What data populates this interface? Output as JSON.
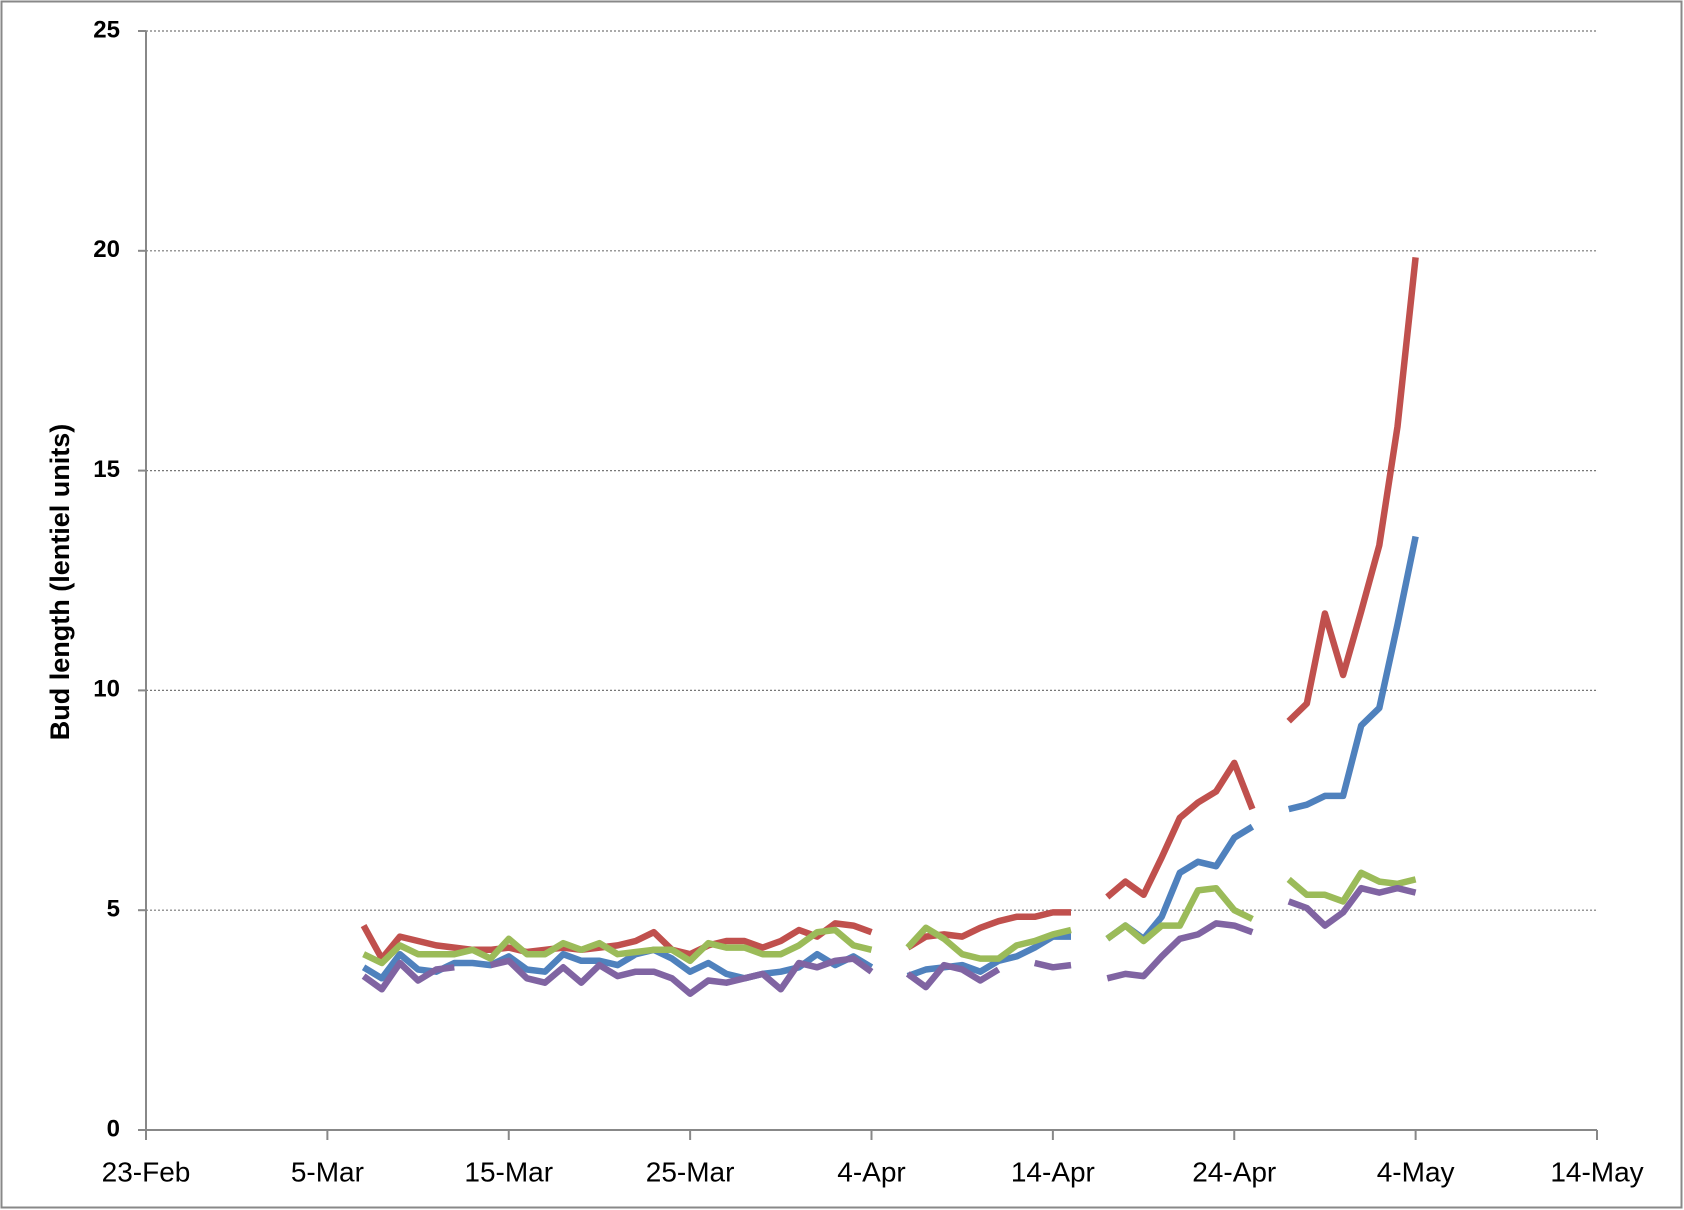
{
  "chart_data": {
    "type": "line",
    "y_label": "Bud length (lentiel units)",
    "x": [
      66,
      67,
      68,
      69,
      70,
      71,
      72,
      73,
      74,
      75,
      76,
      77,
      78,
      79,
      80,
      81,
      82,
      83,
      84,
      85,
      86,
      87,
      88,
      89,
      90,
      91,
      92,
      93,
      94,
      95,
      96,
      97,
      98,
      99,
      100,
      101,
      102,
      103,
      104,
      105,
      106,
      107,
      108,
      109,
      110,
      111,
      112,
      113,
      114,
      115,
      116,
      117,
      118,
      119,
      120,
      121,
      122,
      123,
      124
    ],
    "series": [
      {
        "color": "#c0504d",
        "values": [
          4.65,
          3.9,
          4.4,
          4.3,
          4.2,
          4.15,
          4.1,
          4.1,
          4.15,
          4.05,
          4.1,
          4.15,
          4.1,
          4.15,
          4.2,
          4.3,
          4.5,
          4.1,
          4.0,
          4.2,
          4.3,
          4.3,
          4.15,
          4.3,
          4.55,
          4.4,
          4.7,
          4.65,
          4.5,
          null,
          4.15,
          4.4,
          4.45,
          4.4,
          4.6,
          4.75,
          4.85,
          4.85,
          4.95,
          4.95,
          null,
          5.3,
          5.65,
          5.35,
          6.2,
          7.1,
          7.45,
          7.7,
          8.35,
          7.3,
          null,
          9.3,
          9.7,
          11.75,
          10.35,
          11.8,
          13.3,
          16.0,
          19.85
        ]
      },
      {
        "color": "#4f81bd",
        "values": [
          3.7,
          3.45,
          4.0,
          3.65,
          3.6,
          3.8,
          3.8,
          3.75,
          3.95,
          3.65,
          3.6,
          4.0,
          3.85,
          3.85,
          3.75,
          4.0,
          4.1,
          3.9,
          3.6,
          3.8,
          3.55,
          3.45,
          3.55,
          3.6,
          3.7,
          4.0,
          3.75,
          3.95,
          3.7,
          null,
          3.5,
          3.65,
          3.7,
          3.75,
          3.6,
          3.85,
          3.95,
          4.15,
          4.4,
          4.4,
          null,
          4.35,
          4.65,
          4.35,
          4.85,
          5.85,
          6.1,
          6.0,
          6.65,
          6.9,
          null,
          7.3,
          7.4,
          7.6,
          7.6,
          9.2,
          9.6,
          11.5,
          13.5
        ]
      },
      {
        "color": "#9bbb59",
        "values": [
          4.0,
          3.8,
          4.2,
          4.0,
          4.0,
          4.0,
          4.1,
          3.9,
          4.35,
          4.0,
          4.0,
          4.25,
          4.1,
          4.25,
          4.0,
          4.05,
          4.1,
          4.1,
          3.85,
          4.25,
          4.15,
          4.15,
          4.0,
          4.0,
          4.2,
          4.5,
          4.55,
          4.2,
          4.1,
          null,
          4.15,
          4.6,
          4.35,
          4.0,
          3.9,
          3.9,
          4.2,
          4.3,
          4.45,
          4.55,
          null,
          4.35,
          4.65,
          4.3,
          4.65,
          4.65,
          5.45,
          5.5,
          5.0,
          4.8,
          null,
          5.7,
          5.35,
          5.35,
          5.2,
          5.85,
          5.65,
          5.6,
          5.7
        ]
      },
      {
        "color": "#8064a2",
        "values": [
          3.5,
          3.2,
          3.8,
          3.4,
          3.65,
          3.7,
          null,
          3.75,
          3.85,
          3.45,
          3.35,
          3.7,
          3.35,
          3.75,
          3.5,
          3.6,
          3.6,
          3.45,
          3.1,
          3.4,
          3.35,
          3.45,
          3.55,
          3.2,
          3.8,
          3.7,
          3.85,
          3.9,
          3.6,
          null,
          3.55,
          3.25,
          3.75,
          3.65,
          3.4,
          3.65,
          null,
          3.8,
          3.7,
          3.75,
          null,
          3.45,
          3.55,
          3.5,
          3.95,
          4.35,
          4.45,
          4.7,
          4.65,
          4.5,
          null,
          5.2,
          5.05,
          4.65,
          4.95,
          5.5,
          5.4,
          5.5,
          5.4
        ]
      }
    ],
    "xlim": [
      54,
      134
    ],
    "xticks": [
      {
        "value": 54,
        "label": "23-Feb"
      },
      {
        "value": 64,
        "label": "5-Mar"
      },
      {
        "value": 74,
        "label": "15-Mar"
      },
      {
        "value": 84,
        "label": "25-Mar"
      },
      {
        "value": 94,
        "label": "4-Apr"
      },
      {
        "value": 104,
        "label": "14-Apr"
      },
      {
        "value": 114,
        "label": "24-Apr"
      },
      {
        "value": 124,
        "label": "4-May"
      },
      {
        "value": 134,
        "label": "14-May"
      }
    ],
    "ylim": [
      0,
      25
    ],
    "yticks": [
      0,
      5,
      10,
      15,
      20,
      25
    ],
    "grid": true
  }
}
